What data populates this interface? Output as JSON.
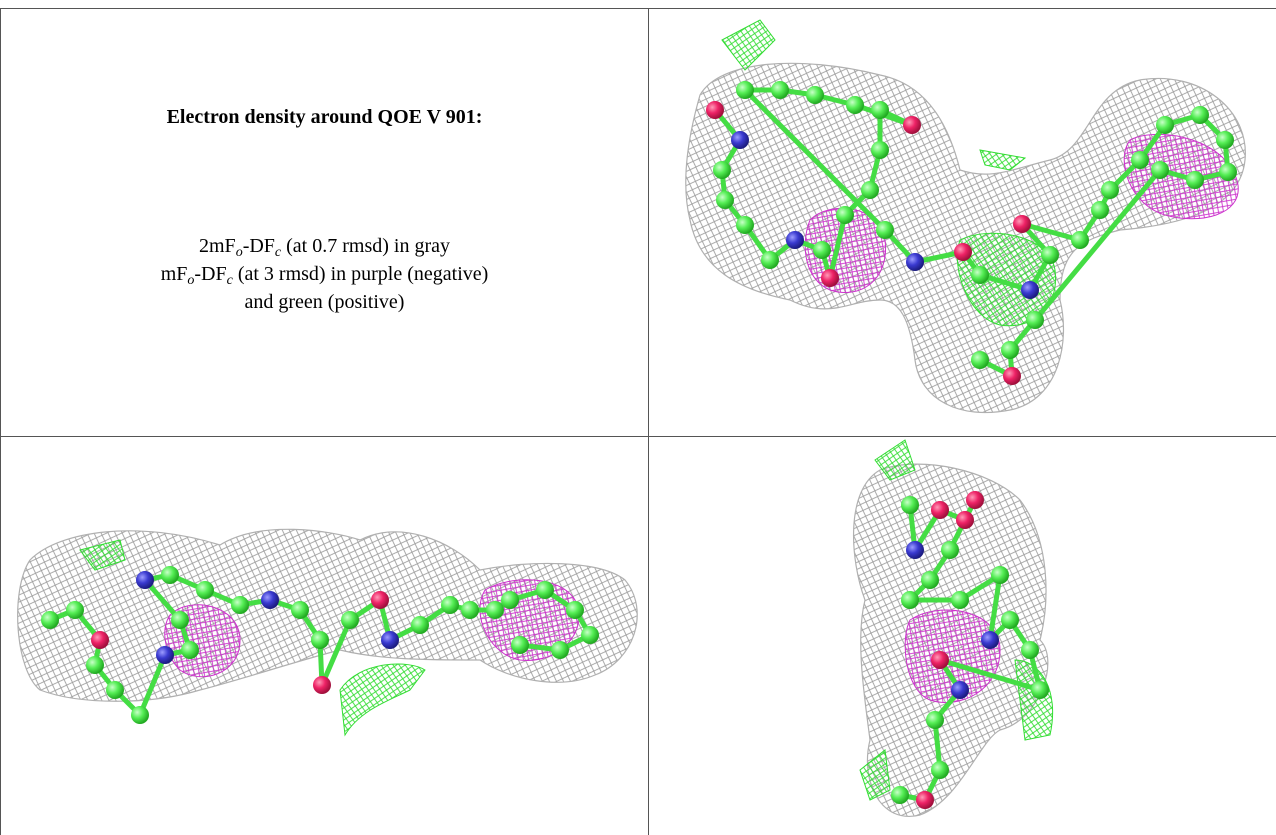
{
  "caption": {
    "title": "Electron density around QOE V 901:",
    "lines": [
      [
        "2mF",
        "o",
        "-DF",
        "c",
        " (at 0.7 rmsd) in gray"
      ],
      [
        "mF",
        "o",
        "-DF",
        "c",
        " (at 3 rmsd) in purple (negative)"
      ],
      [
        "and green (positive)"
      ]
    ]
  }
}
